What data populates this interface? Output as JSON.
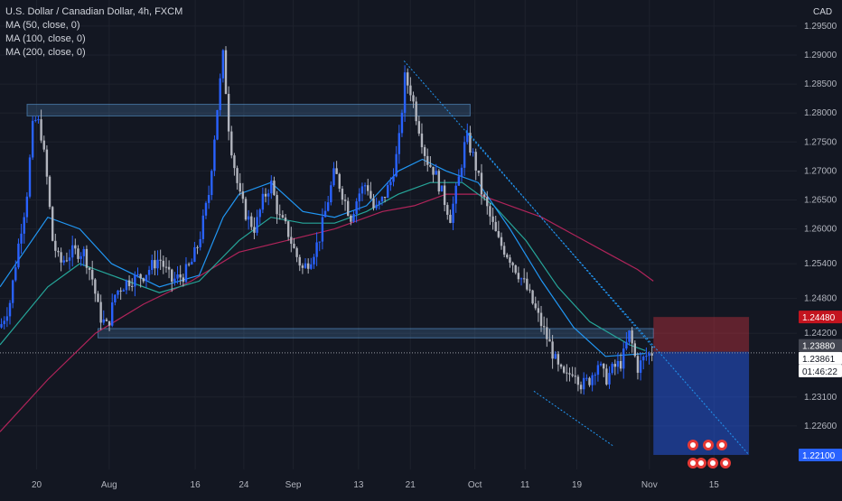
{
  "legend": {
    "title": "U.S. Dollar / Canadian Dollar, 4h, FXCM",
    "ma50": "MA (50, close, 0)",
    "ma100": "MA (100, close, 0)",
    "ma200": "MA (200, close, 0)"
  },
  "currency": "CAD",
  "colors": {
    "background": "#131722",
    "up": "#2962ff",
    "down": "#b2b5be",
    "ma50": "#2196f3",
    "ma100": "#26a69a",
    "ma200": "#b0245a",
    "zone": "#5b9bd5",
    "stop": "#f23645",
    "target": "#2962ff"
  },
  "chart_data": {
    "type": "candlestick",
    "y_range": [
      1.2185,
      1.2995
    ],
    "price_ticks": [
      "1.29500",
      "1.29000",
      "1.28500",
      "1.28000",
      "1.27500",
      "1.27000",
      "1.26500",
      "1.26000",
      "1.25400",
      "1.24800",
      "1.24200",
      "1.23100",
      "1.22600"
    ],
    "time_ticks": [
      "20",
      "Aug",
      "16",
      "24",
      "Sep",
      "13",
      "21",
      "Oct",
      "11",
      "19",
      "Nov",
      "15"
    ],
    "price_tags": [
      {
        "label": "1.24480",
        "value": 1.2448,
        "kind": "stop"
      },
      {
        "label": "1.23880",
        "value": 1.2388,
        "kind": "entry"
      },
      {
        "label": "1.23861",
        "value": 1.23861,
        "kind": "current"
      },
      {
        "label": "01:46:22",
        "kind": "countdown"
      },
      {
        "label": "1.22100",
        "value": 1.221,
        "kind": "target"
      }
    ],
    "price_path": [
      [
        0,
        1.243
      ],
      [
        0.012,
        1.247
      ],
      [
        0.025,
        1.259
      ],
      [
        0.033,
        1.265
      ],
      [
        0.042,
        1.279
      ],
      [
        0.05,
        1.278
      ],
      [
        0.058,
        1.27
      ],
      [
        0.066,
        1.258
      ],
      [
        0.075,
        1.254
      ],
      [
        0.09,
        1.256
      ],
      [
        0.105,
        1.256
      ],
      [
        0.115,
        1.252
      ],
      [
        0.125,
        1.245
      ],
      [
        0.135,
        1.243
      ],
      [
        0.145,
        1.249
      ],
      [
        0.16,
        1.251
      ],
      [
        0.18,
        1.252
      ],
      [
        0.2,
        1.255
      ],
      [
        0.215,
        1.251
      ],
      [
        0.23,
        1.252
      ],
      [
        0.24,
        1.254
      ],
      [
        0.25,
        1.258
      ],
      [
        0.262,
        1.266
      ],
      [
        0.272,
        1.28
      ],
      [
        0.28,
        1.29
      ],
      [
        0.288,
        1.276
      ],
      [
        0.3,
        1.266
      ],
      [
        0.31,
        1.262
      ],
      [
        0.32,
        1.26
      ],
      [
        0.33,
        1.265
      ],
      [
        0.34,
        1.268
      ],
      [
        0.35,
        1.262
      ],
      [
        0.36,
        1.26
      ],
      [
        0.37,
        1.256
      ],
      [
        0.38,
        1.253
      ],
      [
        0.39,
        1.255
      ],
      [
        0.4,
        1.258
      ],
      [
        0.41,
        1.264
      ],
      [
        0.42,
        1.27
      ],
      [
        0.43,
        1.266
      ],
      [
        0.44,
        1.262
      ],
      [
        0.45,
        1.266
      ],
      [
        0.46,
        1.268
      ],
      [
        0.47,
        1.263
      ],
      [
        0.48,
        1.265
      ],
      [
        0.49,
        1.268
      ],
      [
        0.5,
        1.274
      ],
      [
        0.508,
        1.286
      ],
      [
        0.515,
        1.284
      ],
      [
        0.525,
        1.278
      ],
      [
        0.535,
        1.272
      ],
      [
        0.545,
        1.27
      ],
      [
        0.555,
        1.266
      ],
      [
        0.565,
        1.262
      ],
      [
        0.575,
        1.268
      ],
      [
        0.585,
        1.276
      ],
      [
        0.595,
        1.272
      ],
      [
        0.605,
        1.266
      ],
      [
        0.615,
        1.262
      ],
      [
        0.625,
        1.258
      ],
      [
        0.64,
        1.255
      ],
      [
        0.66,
        1.25
      ],
      [
        0.675,
        1.245
      ],
      [
        0.69,
        1.24
      ],
      [
        0.7,
        1.236
      ],
      [
        0.71,
        1.234
      ],
      [
        0.72,
        1.236
      ],
      [
        0.73,
        1.233
      ],
      [
        0.74,
        1.234
      ],
      [
        0.75,
        1.237
      ],
      [
        0.76,
        1.234
      ],
      [
        0.77,
        1.236
      ],
      [
        0.78,
        1.237
      ],
      [
        0.79,
        1.242
      ],
      [
        0.8,
        1.236
      ],
      [
        0.81,
        1.238
      ],
      [
        0.82,
        1.2388
      ]
    ],
    "ma_paths": {
      "ma50": [
        [
          0,
          1.25
        ],
        [
          0.06,
          1.262
        ],
        [
          0.1,
          1.26
        ],
        [
          0.14,
          1.254
        ],
        [
          0.2,
          1.25
        ],
        [
          0.25,
          1.252
        ],
        [
          0.28,
          1.262
        ],
        [
          0.3,
          1.266
        ],
        [
          0.34,
          1.268
        ],
        [
          0.38,
          1.263
        ],
        [
          0.42,
          1.262
        ],
        [
          0.46,
          1.264
        ],
        [
          0.5,
          1.27
        ],
        [
          0.53,
          1.272
        ],
        [
          0.56,
          1.27
        ],
        [
          0.6,
          1.268
        ],
        [
          0.64,
          1.26
        ],
        [
          0.68,
          1.251
        ],
        [
          0.72,
          1.243
        ],
        [
          0.76,
          1.238
        ],
        [
          0.81,
          1.2385
        ]
      ],
      "ma100": [
        [
          0,
          1.24
        ],
        [
          0.06,
          1.25
        ],
        [
          0.1,
          1.254
        ],
        [
          0.14,
          1.252
        ],
        [
          0.2,
          1.249
        ],
        [
          0.25,
          1.251
        ],
        [
          0.3,
          1.258
        ],
        [
          0.34,
          1.262
        ],
        [
          0.38,
          1.261
        ],
        [
          0.42,
          1.261
        ],
        [
          0.46,
          1.263
        ],
        [
          0.5,
          1.266
        ],
        [
          0.54,
          1.268
        ],
        [
          0.58,
          1.268
        ],
        [
          0.62,
          1.264
        ],
        [
          0.66,
          1.258
        ],
        [
          0.7,
          1.25
        ],
        [
          0.74,
          1.244
        ],
        [
          0.79,
          1.24
        ],
        [
          0.81,
          1.239
        ]
      ],
      "ma200": [
        [
          0,
          1.225
        ],
        [
          0.06,
          1.234
        ],
        [
          0.12,
          1.242
        ],
        [
          0.18,
          1.247
        ],
        [
          0.24,
          1.251
        ],
        [
          0.3,
          1.256
        ],
        [
          0.36,
          1.258
        ],
        [
          0.42,
          1.26
        ],
        [
          0.48,
          1.263
        ],
        [
          0.52,
          1.264
        ],
        [
          0.56,
          1.266
        ],
        [
          0.6,
          1.266
        ],
        [
          0.64,
          1.264
        ],
        [
          0.68,
          1.262
        ],
        [
          0.72,
          1.259
        ],
        [
          0.76,
          1.256
        ],
        [
          0.8,
          1.253
        ],
        [
          0.82,
          1.251
        ]
      ]
    },
    "zones": [
      {
        "from": 0.034,
        "to": 0.59,
        "low": 1.2795,
        "high": 1.2815
      },
      {
        "from": 0.123,
        "to": 0.82,
        "low": 1.2412,
        "high": 1.2428
      }
    ],
    "position": {
      "from": 0.82,
      "to": 0.94,
      "entry": 1.2388,
      "stop": 1.2448,
      "target": 1.221
    },
    "trendlines": [
      {
        "p1": [
          0.507,
          1.289
        ],
        "p2": [
          0.94,
          1.221
        ]
      },
      {
        "p1": [
          0.585,
          1.277
        ],
        "p2": [
          0.82,
          1.2395
        ]
      },
      {
        "p1": [
          0.67,
          1.232
        ],
        "p2": [
          0.77,
          1.2225
        ]
      }
    ]
  }
}
